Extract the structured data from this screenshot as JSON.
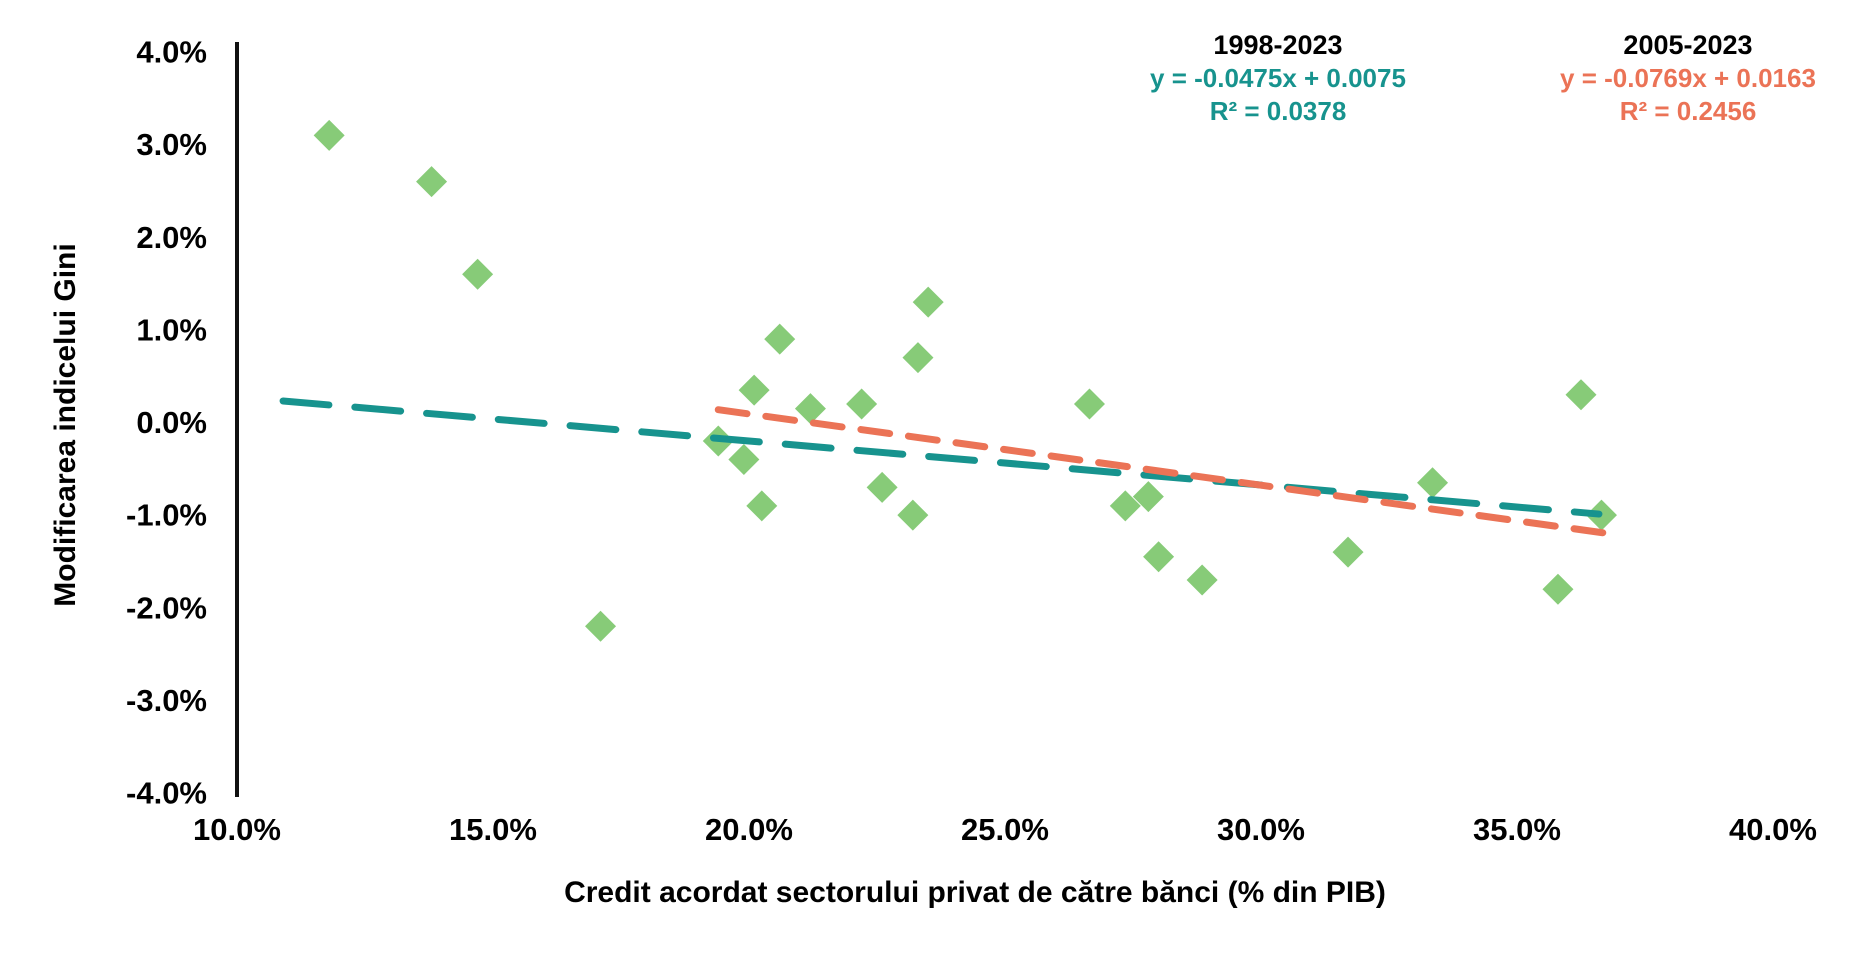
{
  "chart_data": {
    "type": "scatter",
    "title": "",
    "xlabel": "Credit acordat sectorului privat de către bănci (% din PIB)",
    "ylabel": "Modificarea indicelui Gini",
    "xlim": [
      10,
      40
    ],
    "ylim": [
      -4,
      4
    ],
    "grid": false,
    "x_ticks": [
      "10.0%",
      "15.0%",
      "20.0%",
      "25.0%",
      "30.0%",
      "35.0%",
      "40.0%"
    ],
    "y_ticks": [
      "4.0%",
      "3.0%",
      "2.0%",
      "1.0%",
      "0.0%",
      "-1.0%",
      "-2.0%",
      "-3.0%",
      "-4.0%"
    ],
    "marker": {
      "shape": "diamond",
      "color": "#87CB78",
      "size": 31
    },
    "points": [
      [
        11.8,
        3.1
      ],
      [
        13.8,
        2.6
      ],
      [
        14.7,
        1.6
      ],
      [
        17.1,
        -2.2
      ],
      [
        19.4,
        -0.2
      ],
      [
        19.9,
        -0.4
      ],
      [
        20.1,
        0.35
      ],
      [
        20.25,
        -0.9
      ],
      [
        20.6,
        0.9
      ],
      [
        21.2,
        0.15
      ],
      [
        22.2,
        0.2
      ],
      [
        22.6,
        -0.7
      ],
      [
        23.2,
        -1.0
      ],
      [
        23.3,
        0.7
      ],
      [
        23.5,
        1.3
      ],
      [
        26.65,
        0.2
      ],
      [
        27.35,
        -0.9
      ],
      [
        27.8,
        -0.8
      ],
      [
        28.0,
        -1.45
      ],
      [
        28.85,
        -1.7
      ],
      [
        31.7,
        -1.4
      ],
      [
        33.35,
        -0.65
      ],
      [
        35.8,
        -1.8
      ],
      [
        36.25,
        0.3
      ],
      [
        36.65,
        -1.0
      ]
    ],
    "trendlines": [
      {
        "name": "1998-2023",
        "equation": "y = -0.0475x + 0.0075",
        "r2_label": "R² = 0.0378",
        "slope": -0.0475,
        "intercept": 0.0075,
        "r2": 0.0378,
        "x_start": 10.9,
        "x_end": 36.6,
        "color": "#17938E",
        "dash": [
          46,
          26
        ]
      },
      {
        "name": "2005-2023",
        "equation": "y = -0.0769x + 0.0163",
        "r2_label": "R² = 0.2456",
        "slope": -0.0769,
        "intercept": 0.0163,
        "r2": 0.2456,
        "x_start": 19.4,
        "x_end": 36.7,
        "color": "#EB7356",
        "dash": [
          29,
          19
        ]
      }
    ],
    "legend_position": "top-right",
    "axis_color": "#111111"
  }
}
